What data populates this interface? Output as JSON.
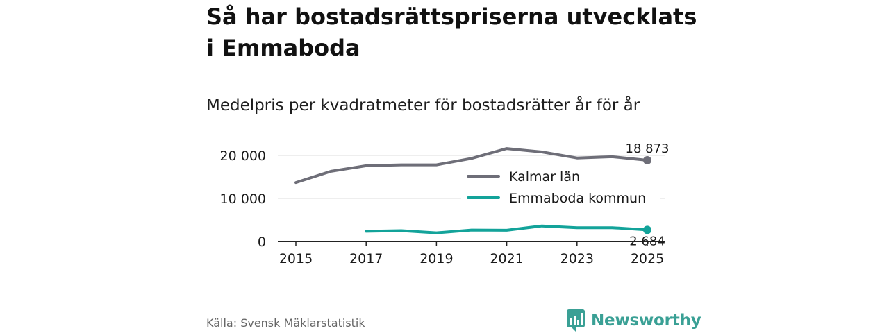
{
  "header": {
    "title": "Så har bostadsrättspriserna utvecklats i Emmaboda",
    "subtitle": "Medelpris per kvadratmeter för bostadsrätter år för år"
  },
  "footer": {
    "source": "Källa: Svensk Mäklarstatistik",
    "brand": "Newsworthy"
  },
  "colors": {
    "kalmar": "#6e6e78",
    "emmaboda": "#13a39a",
    "brand": "#3aa095"
  },
  "chart_data": {
    "type": "line",
    "title": "Medelpris per kvadratmeter för bostadsrätter år för år",
    "xlabel": "",
    "ylabel": "",
    "x": [
      2015,
      2016,
      2017,
      2018,
      2019,
      2020,
      2021,
      2022,
      2023,
      2024,
      2025
    ],
    "xticks": [
      "2015",
      "2017",
      "2019",
      "2021",
      "2023",
      "2025"
    ],
    "yticks": [
      {
        "value": 0,
        "label": "0"
      },
      {
        "value": 10000,
        "label": "10 000"
      },
      {
        "value": 20000,
        "label": "20 000"
      }
    ],
    "ylim": [
      0,
      22000
    ],
    "grid": true,
    "legend_position": "center-right",
    "series": [
      {
        "name": "Kalmar län",
        "color": "#6e6e78",
        "values": [
          13700,
          16300,
          17600,
          17800,
          17800,
          19300,
          21600,
          20800,
          19400,
          19700,
          18873
        ],
        "end_label": "18 873"
      },
      {
        "name": "Emmaboda kommun",
        "color": "#13a39a",
        "values": [
          null,
          null,
          2350,
          2500,
          2000,
          2650,
          2600,
          3600,
          3200,
          3200,
          2684
        ],
        "end_label": "2 684"
      }
    ]
  }
}
